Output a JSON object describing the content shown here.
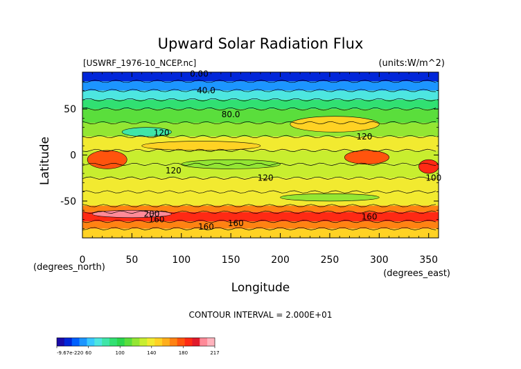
{
  "chart_data": {
    "type": "heatmap",
    "title": "Upward Solar Radiation Flux",
    "file_label": "[USWRF_1976-10_NCEP.nc]",
    "units_label": "(units:W/m^2)",
    "xlabel": "Longitude",
    "ylabel": "Latitude",
    "x_unit_label": "(degrees_east)",
    "y_unit_label": "(degrees_north)",
    "xlim": [
      0,
      360
    ],
    "ylim": [
      -90,
      90
    ],
    "x_ticks": [
      0,
      50,
      100,
      150,
      200,
      250,
      300,
      350
    ],
    "y_ticks": [
      -50,
      0,
      50
    ],
    "contour_interval_label": "CONTOUR INTERVAL = 2.000E+01",
    "contour_labels": [
      {
        "text": "0.00",
        "lon": 118,
        "lat": 88
      },
      {
        "text": "40.0",
        "lon": 125,
        "lat": 70
      },
      {
        "text": "80.0",
        "lon": 150,
        "lat": 44
      },
      {
        "text": "120",
        "lon": 80,
        "lat": 24
      },
      {
        "text": "120",
        "lon": 285,
        "lat": 20
      },
      {
        "text": "120",
        "lon": 92,
        "lat": -17
      },
      {
        "text": "120",
        "lon": 185,
        "lat": -25
      },
      {
        "text": "200",
        "lon": 70,
        "lat": -64
      },
      {
        "text": "160",
        "lon": 75,
        "lat": -70
      },
      {
        "text": "160",
        "lon": 125,
        "lat": -78
      },
      {
        "text": "160",
        "lon": 155,
        "lat": -74
      },
      {
        "text": "160",
        "lon": 290,
        "lat": -67
      },
      {
        "text": "100",
        "lon": 355,
        "lat": -25
      }
    ],
    "colorbar": {
      "tick_labels": [
        "-9.67e-220",
        "60",
        "100",
        "140",
        "180",
        "217"
      ],
      "colors": [
        "#1a0aa8",
        "#0026d9",
        "#0060ff",
        "#1c95ff",
        "#38c8ff",
        "#4de6e0",
        "#3fe6a8",
        "#31e072",
        "#2bd64d",
        "#5ade3c",
        "#93e633",
        "#c8ee2f",
        "#f2ea30",
        "#ffd224",
        "#ffae1b",
        "#ff8212",
        "#ff540d",
        "#ff2a14",
        "#e01a2a",
        "#ff8a98",
        "#ffb3bd"
      ]
    },
    "latitude_bands": [
      {
        "lat_from": 90,
        "lat_to": 80,
        "value": 5
      },
      {
        "lat_from": 80,
        "lat_to": 70,
        "value": 30
      },
      {
        "lat_from": 70,
        "lat_to": 60,
        "value": 55
      },
      {
        "lat_from": 60,
        "lat_to": 50,
        "value": 80
      },
      {
        "lat_from": 50,
        "lat_to": 35,
        "value": 100
      },
      {
        "lat_from": 35,
        "lat_to": 20,
        "value": 115
      },
      {
        "lat_from": 20,
        "lat_to": 5,
        "value": 130
      },
      {
        "lat_from": 5,
        "lat_to": -10,
        "value": 120
      },
      {
        "lat_from": -10,
        "lat_to": -25,
        "value": 125
      },
      {
        "lat_from": -25,
        "lat_to": -40,
        "value": 135
      },
      {
        "lat_from": -40,
        "lat_to": -55,
        "value": 130
      },
      {
        "lat_from": -55,
        "lat_to": -62,
        "value": 165
      },
      {
        "lat_from": -62,
        "lat_to": -72,
        "value": 195
      },
      {
        "lat_from": -72,
        "lat_to": -80,
        "value": 165
      },
      {
        "lat_from": -80,
        "lat_to": -90,
        "value": 145
      }
    ],
    "features": [
      {
        "lon_from": 5,
        "lon_to": 45,
        "lat_from": 5,
        "lat_to": -15,
        "value": 185
      },
      {
        "lon_from": 265,
        "lon_to": 310,
        "lat_from": 5,
        "lat_to": -10,
        "value": 180
      },
      {
        "lon_from": 340,
        "lon_to": 360,
        "lat_from": -5,
        "lat_to": -20,
        "value": 195
      },
      {
        "lon_from": 10,
        "lon_to": 90,
        "lat_from": -60,
        "lat_to": -68,
        "value": 210
      },
      {
        "lon_from": 210,
        "lon_to": 300,
        "lat_from": 42,
        "lat_to": 25,
        "value": 150
      },
      {
        "lon_from": 40,
        "lon_to": 90,
        "lat_from": 30,
        "lat_to": 20,
        "value": 70
      },
      {
        "lon_from": 100,
        "lon_to": 200,
        "lat_from": -5,
        "lat_to": -15,
        "value": 105
      },
      {
        "lon_from": 200,
        "lon_to": 300,
        "lat_from": -42,
        "lat_to": -50,
        "value": 110
      },
      {
        "lon_from": 60,
        "lon_to": 180,
        "lat_from": 15,
        "lat_to": 5,
        "value": 150
      }
    ]
  }
}
